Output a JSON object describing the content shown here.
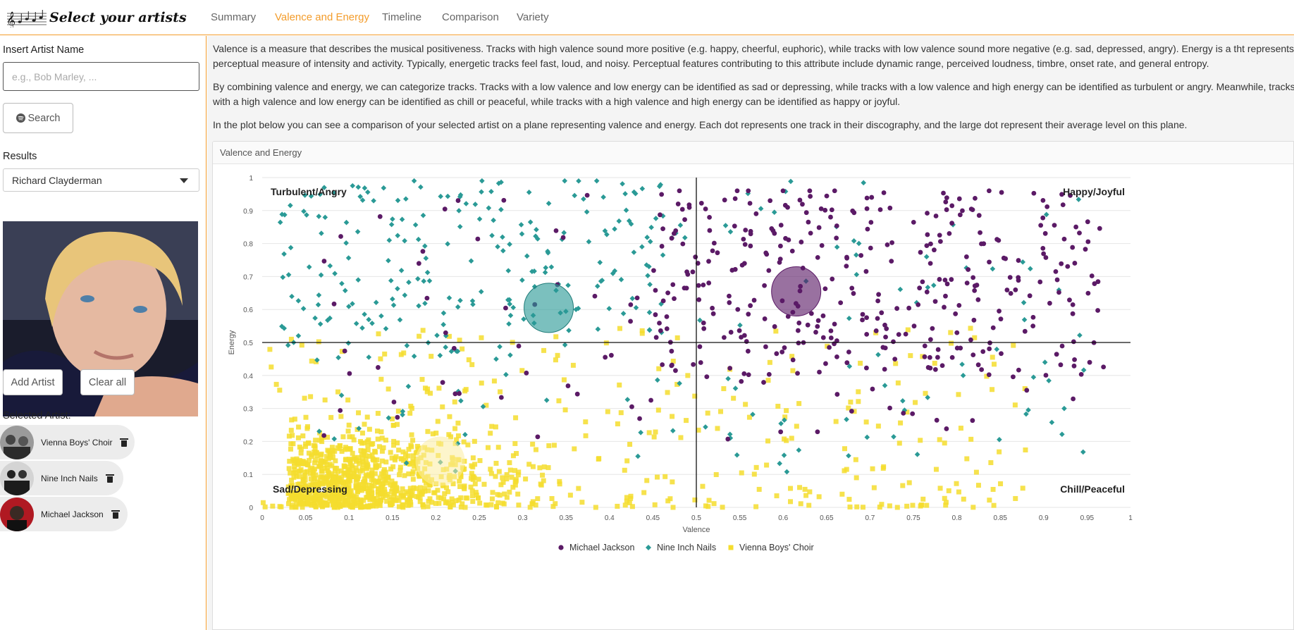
{
  "app": {
    "title": "Select your artists"
  },
  "nav": {
    "tabs": [
      {
        "label": "Summary",
        "active": false
      },
      {
        "label": "Valence and Energy",
        "active": true
      },
      {
        "label": "Timeline",
        "active": false
      },
      {
        "label": "Comparison",
        "active": false
      },
      {
        "label": "Variety",
        "active": false
      }
    ]
  },
  "sidebar": {
    "insert_label": "Insert Artist Name",
    "search_placeholder": "e.g., Bob Marley, ...",
    "search_button": "Search",
    "results_label": "Results",
    "results_selected": "Richard Clayderman",
    "add_button": "Add Artist",
    "clear_button": "Clear all",
    "selected_label": "Selected Artist:",
    "selected_artists": [
      {
        "name": "Vienna Boys' Choir"
      },
      {
        "name": "Nine Inch Nails"
      },
      {
        "name": "Michael Jackson"
      }
    ]
  },
  "main": {
    "para1_line1": "Valence is a measure that describes the musical positiveness. Tracks with high valence sound more positive (e.g. happy, cheerful, euphoric), while tracks with low valence sound more negative (e.g. sad, depressed, angry). Energy is a tht represents a",
    "para1_line2": "perceptual measure of intensity and activity. Typically, energetic tracks feel fast, loud, and noisy. Perceptual features contributing to this attribute include dynamic range, perceived loudness, timbre, onset rate, and general entropy.",
    "para2_line1": "By combining valence and energy, we can categorize tracks. Tracks with a low valence and low energy can be identified as sad or depressing, while tracks with a low valence and high energy can be identified as turbulent or angry. Meanwhile, tracks",
    "para2_line2": "with a high valence and low energy can be identified as chill or peaceful, while tracks with a high valence and high energy can be identified as happy or joyful.",
    "para3": "In the plot below you can see a comparison of your selected artist on a plane representing valence and energy. Each dot represents one track in their discography, and the large dot represent their average level on this plane.",
    "panel_title": "Valence and Energy"
  },
  "chart_data": {
    "type": "scatter",
    "xlabel": "Valence",
    "ylabel": "Energy",
    "xlim": [
      0,
      1
    ],
    "ylim": [
      0,
      1
    ],
    "x_ticks": [
      "0",
      "0.05",
      "0.1",
      "0.15",
      "0.2",
      "0.25",
      "0.3",
      "0.35",
      "0.4",
      "0.45",
      "0.5",
      "0.55",
      "0.6",
      "0.65",
      "0.7",
      "0.75",
      "0.8",
      "0.85",
      "0.9",
      "0.95",
      "1"
    ],
    "y_ticks": [
      "0",
      "0.1",
      "0.2",
      "0.3",
      "0.4",
      "0.5",
      "0.6",
      "0.7",
      "0.8",
      "0.9",
      "1"
    ],
    "quadrant_labels": {
      "top_left": "Turbulent/Angry",
      "top_right": "Happy/Joyful",
      "bottom_left": "Sad/Depressing",
      "bottom_right": "Chill/Peaceful"
    },
    "legend_position": "bottom",
    "grid": true,
    "series": [
      {
        "name": "Michael Jackson",
        "marker": "circle",
        "color": "#5b1a66",
        "mean": {
          "x": 0.615,
          "y": 0.655
        }
      },
      {
        "name": "Nine Inch Nails",
        "marker": "diamond",
        "color": "#2a9a96",
        "mean": {
          "x": 0.33,
          "y": 0.605
        }
      },
      {
        "name": "Vienna Boys' Choir",
        "marker": "square",
        "color": "#f5dd2e",
        "mean": {
          "x": 0.205,
          "y": 0.14
        }
      }
    ]
  }
}
